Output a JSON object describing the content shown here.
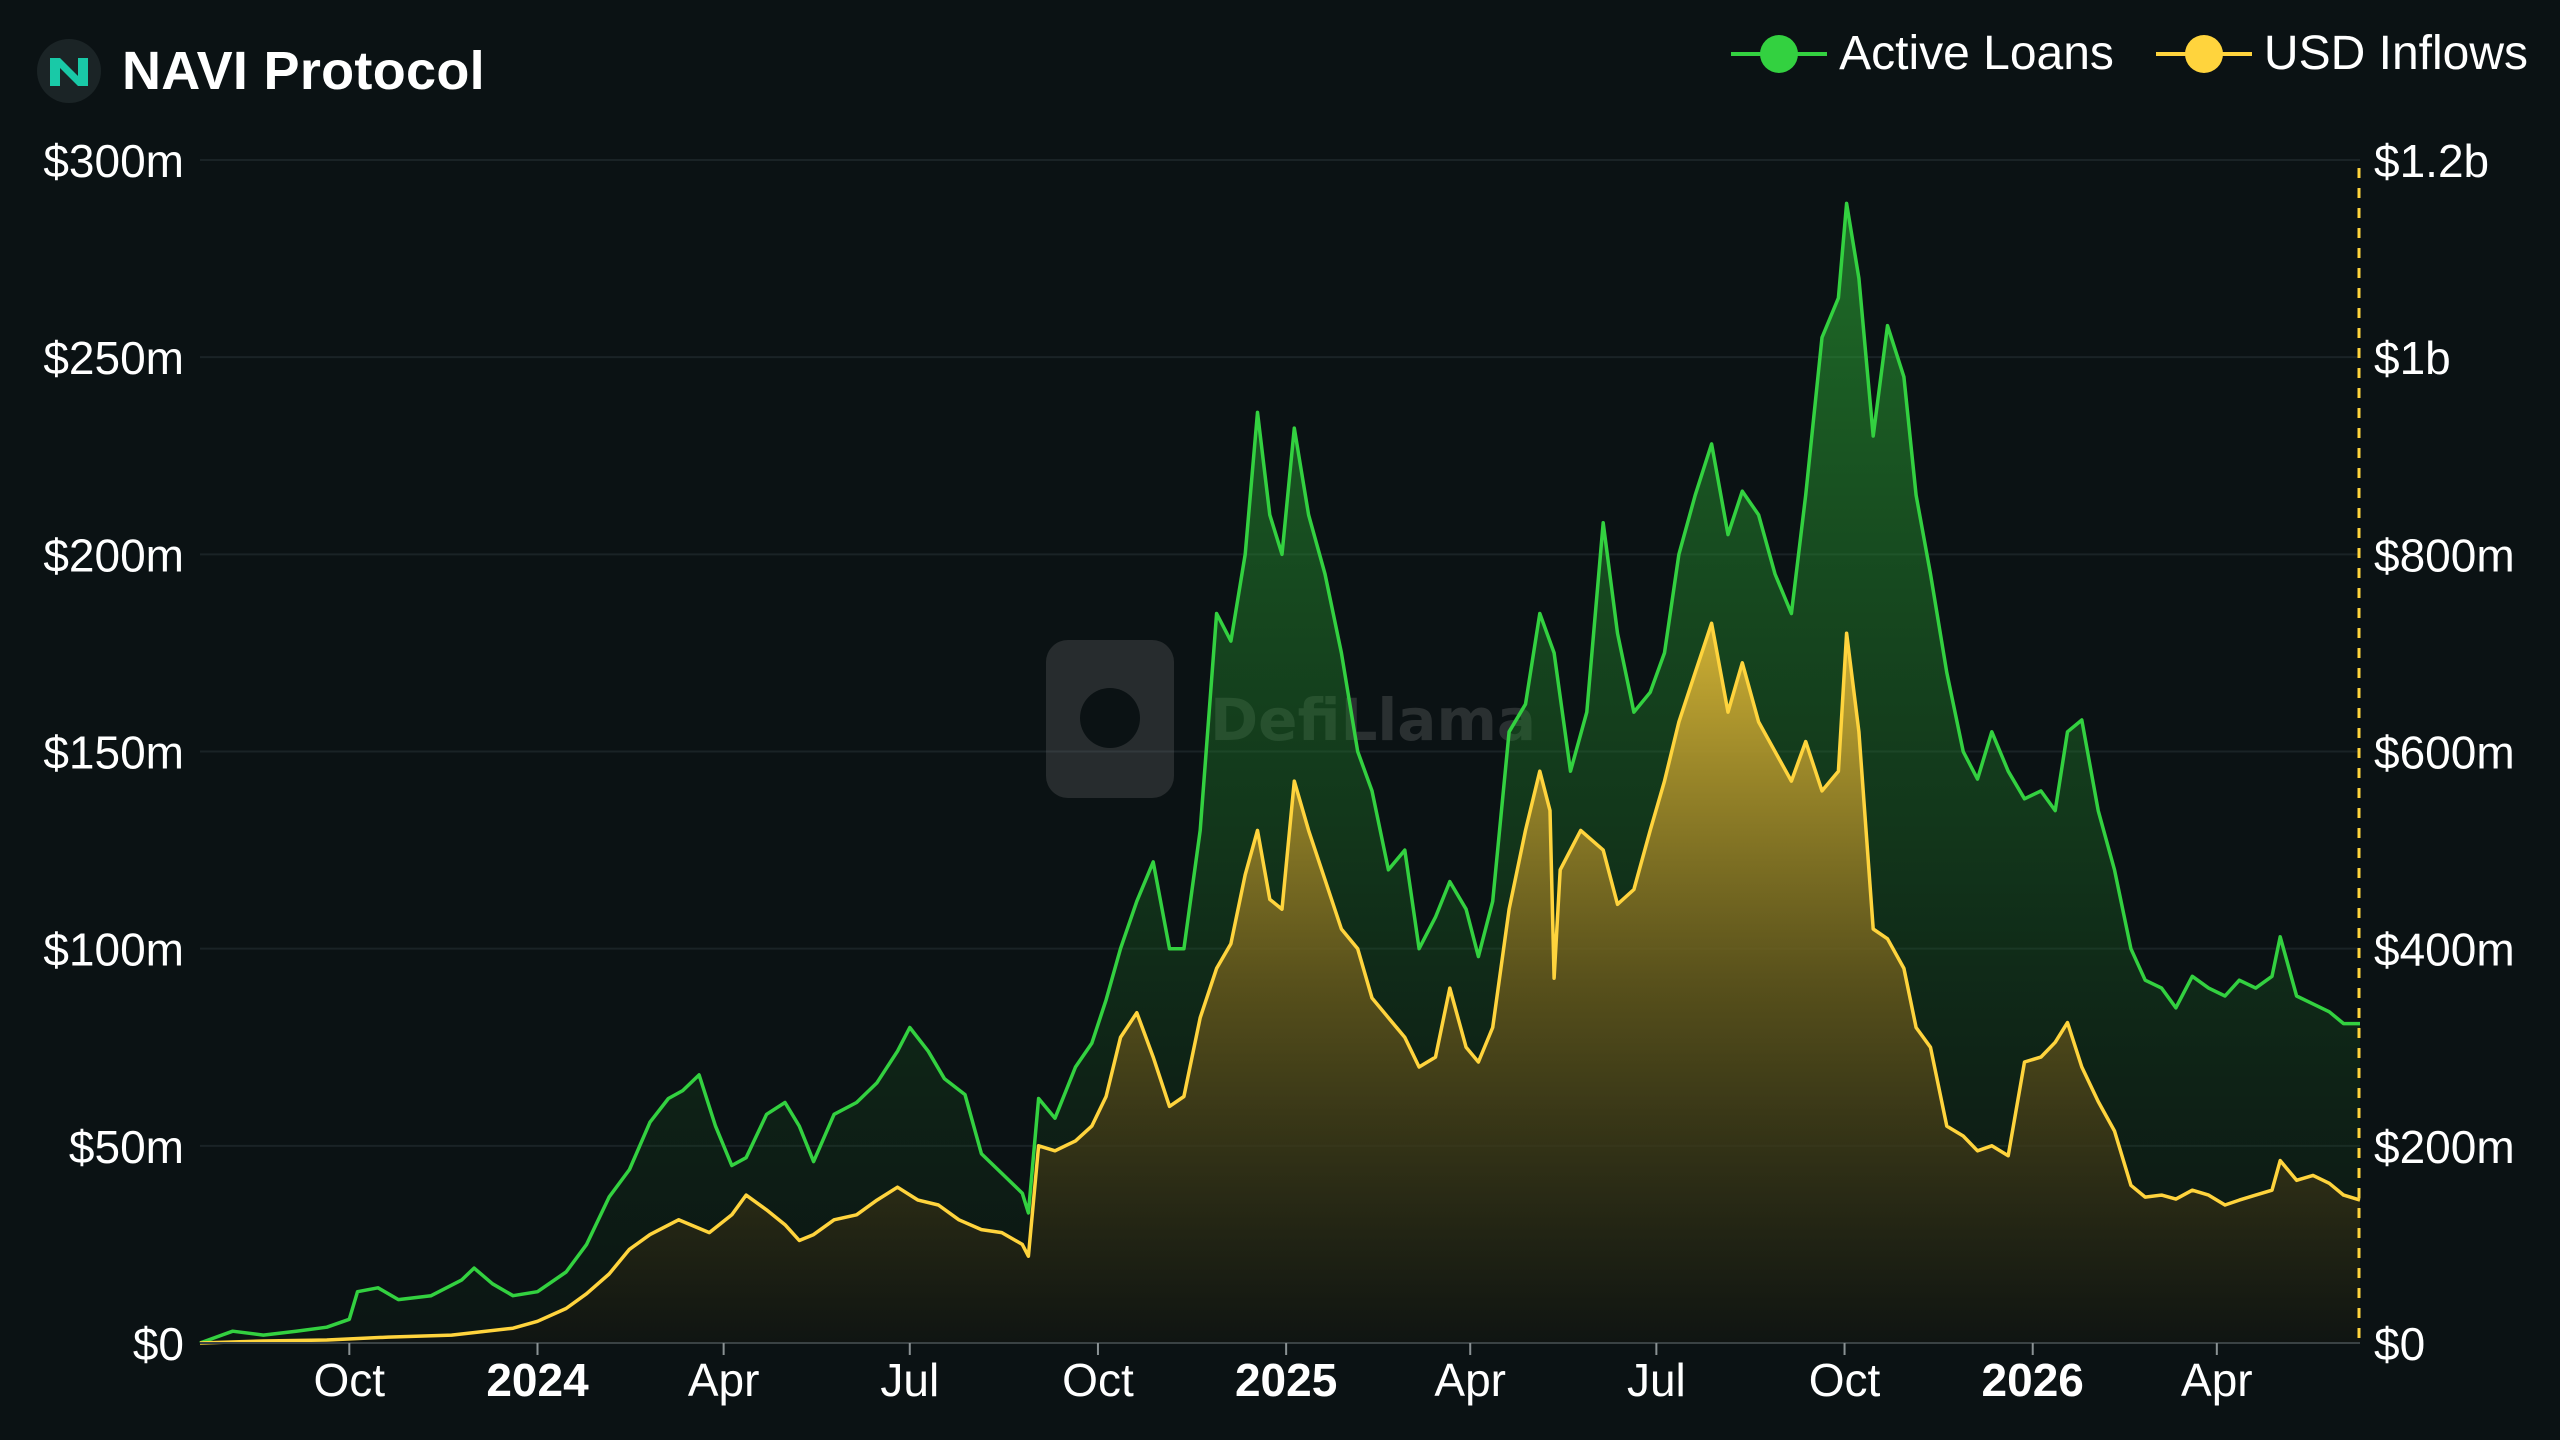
{
  "header": {
    "title": "NAVI Protocol",
    "logo_icon": "navi-logo-icon"
  },
  "legend": {
    "items": [
      {
        "label": "Active Loans",
        "color": "#33d140"
      },
      {
        "label": "USD Inflows",
        "color": "#ffd43d"
      }
    ]
  },
  "watermark": {
    "text": "DefiLlama"
  },
  "chart_data": {
    "type": "area",
    "title": "NAVI Protocol",
    "x_axis": {
      "ticks": [
        {
          "label": "Oct",
          "date": "2023-10-01",
          "bold": false
        },
        {
          "label": "2024",
          "date": "2024-01-01",
          "bold": true
        },
        {
          "label": "Apr",
          "date": "2024-04-01",
          "bold": false
        },
        {
          "label": "Jul",
          "date": "2024-07-01",
          "bold": false
        },
        {
          "label": "Oct",
          "date": "2024-10-01",
          "bold": false
        },
        {
          "label": "2025",
          "date": "2025-01-01",
          "bold": true
        },
        {
          "label": "Apr",
          "date": "2025-04-01",
          "bold": false
        },
        {
          "label": "Jul",
          "date": "2025-07-01",
          "bold": false
        },
        {
          "label": "Oct",
          "date": "2025-10-01",
          "bold": false
        },
        {
          "label": "2026",
          "date": "2026-01-01",
          "bold": true
        },
        {
          "label": "Apr",
          "date": "2026-04-01",
          "bold": false
        }
      ],
      "range": [
        "2023-07-20",
        "2026-06-10"
      ]
    },
    "y_axis_left": {
      "series": "Active Loans",
      "ylim": [
        0,
        300000000
      ],
      "ticks": [
        "$0",
        "$50m",
        "$100m",
        "$150m",
        "$200m",
        "$250m",
        "$300m"
      ]
    },
    "y_axis_right": {
      "series": "USD Inflows",
      "ylim": [
        0,
        1200000000
      ],
      "ticks": [
        "$0",
        "$200m",
        "$400m",
        "$600m",
        "$800m",
        "$1b",
        "$1.2b"
      ]
    },
    "grid": true,
    "legend_position": "top-right",
    "series": [
      {
        "name": "Active Loans",
        "axis": "left",
        "color": "#33d140",
        "unit": "USD millions",
        "points": [
          [
            "2023-07-20",
            0
          ],
          [
            "2023-08-05",
            3
          ],
          [
            "2023-08-20",
            2
          ],
          [
            "2023-09-05",
            3
          ],
          [
            "2023-09-20",
            4
          ],
          [
            "2023-10-01",
            6
          ],
          [
            "2023-10-05",
            13
          ],
          [
            "2023-10-15",
            14
          ],
          [
            "2023-10-25",
            11
          ],
          [
            "2023-11-10",
            12
          ],
          [
            "2023-11-25",
            16
          ],
          [
            "2023-12-01",
            19
          ],
          [
            "2023-12-10",
            15
          ],
          [
            "2023-12-20",
            12
          ],
          [
            "2024-01-01",
            13
          ],
          [
            "2024-01-15",
            18
          ],
          [
            "2024-01-25",
            25
          ],
          [
            "2024-02-05",
            37
          ],
          [
            "2024-02-15",
            44
          ],
          [
            "2024-02-25",
            56
          ],
          [
            "2024-03-05",
            62
          ],
          [
            "2024-03-12",
            64
          ],
          [
            "2024-03-20",
            68
          ],
          [
            "2024-03-28",
            55
          ],
          [
            "2024-04-05",
            45
          ],
          [
            "2024-04-12",
            47
          ],
          [
            "2024-04-22",
            58
          ],
          [
            "2024-05-01",
            61
          ],
          [
            "2024-05-08",
            55
          ],
          [
            "2024-05-15",
            46
          ],
          [
            "2024-05-25",
            58
          ],
          [
            "2024-06-05",
            61
          ],
          [
            "2024-06-15",
            66
          ],
          [
            "2024-06-25",
            74
          ],
          [
            "2024-07-01",
            80
          ],
          [
            "2024-07-10",
            74
          ],
          [
            "2024-07-18",
            67
          ],
          [
            "2024-07-28",
            63
          ],
          [
            "2024-08-05",
            48
          ],
          [
            "2024-08-15",
            43
          ],
          [
            "2024-08-25",
            38
          ],
          [
            "2024-08-28",
            33
          ],
          [
            "2024-09-02",
            62
          ],
          [
            "2024-09-10",
            57
          ],
          [
            "2024-09-20",
            70
          ],
          [
            "2024-09-28",
            76
          ],
          [
            "2024-10-05",
            87
          ],
          [
            "2024-10-12",
            100
          ],
          [
            "2024-10-20",
            112
          ],
          [
            "2024-10-28",
            122
          ],
          [
            "2024-11-05",
            100
          ],
          [
            "2024-11-12",
            100
          ],
          [
            "2024-11-20",
            130
          ],
          [
            "2024-11-28",
            185
          ],
          [
            "2024-12-05",
            178
          ],
          [
            "2024-12-12",
            200
          ],
          [
            "2024-12-18",
            236
          ],
          [
            "2024-12-24",
            210
          ],
          [
            "2024-12-30",
            200
          ],
          [
            "2025-01-05",
            232
          ],
          [
            "2025-01-12",
            210
          ],
          [
            "2025-01-20",
            195
          ],
          [
            "2025-01-28",
            175
          ],
          [
            "2025-02-05",
            150
          ],
          [
            "2025-02-12",
            140
          ],
          [
            "2025-02-20",
            120
          ],
          [
            "2025-02-28",
            125
          ],
          [
            "2025-03-07",
            100
          ],
          [
            "2025-03-15",
            108
          ],
          [
            "2025-03-22",
            117
          ],
          [
            "2025-03-30",
            110
          ],
          [
            "2025-04-05",
            98
          ],
          [
            "2025-04-12",
            112
          ],
          [
            "2025-04-20",
            155
          ],
          [
            "2025-04-28",
            162
          ],
          [
            "2025-05-05",
            185
          ],
          [
            "2025-05-12",
            175
          ],
          [
            "2025-05-20",
            145
          ],
          [
            "2025-05-28",
            160
          ],
          [
            "2025-06-05",
            208
          ],
          [
            "2025-06-12",
            180
          ],
          [
            "2025-06-20",
            160
          ],
          [
            "2025-06-28",
            165
          ],
          [
            "2025-07-05",
            175
          ],
          [
            "2025-07-12",
            200
          ],
          [
            "2025-07-20",
            215
          ],
          [
            "2025-07-28",
            228
          ],
          [
            "2025-08-05",
            205
          ],
          [
            "2025-08-12",
            216
          ],
          [
            "2025-08-20",
            210
          ],
          [
            "2025-08-28",
            195
          ],
          [
            "2025-09-05",
            185
          ],
          [
            "2025-09-12",
            215
          ],
          [
            "2025-09-20",
            255
          ],
          [
            "2025-09-28",
            265
          ],
          [
            "2025-10-02",
            289
          ],
          [
            "2025-10-08",
            270
          ],
          [
            "2025-10-15",
            230
          ],
          [
            "2025-10-22",
            258
          ],
          [
            "2025-10-30",
            245
          ],
          [
            "2025-11-05",
            215
          ],
          [
            "2025-11-12",
            195
          ],
          [
            "2025-11-20",
            170
          ],
          [
            "2025-11-28",
            150
          ],
          [
            "2025-12-05",
            143
          ],
          [
            "2025-12-12",
            155
          ],
          [
            "2025-12-20",
            145
          ],
          [
            "2025-12-28",
            138
          ],
          [
            "2026-01-05",
            140
          ],
          [
            "2026-01-12",
            135
          ],
          [
            "2026-01-18",
            155
          ],
          [
            "2026-01-25",
            158
          ],
          [
            "2026-02-02",
            135
          ],
          [
            "2026-02-10",
            120
          ],
          [
            "2026-02-18",
            100
          ],
          [
            "2026-02-25",
            92
          ],
          [
            "2026-03-05",
            90
          ],
          [
            "2026-03-12",
            85
          ],
          [
            "2026-03-20",
            93
          ],
          [
            "2026-03-28",
            90
          ],
          [
            "2026-04-05",
            88
          ],
          [
            "2026-04-12",
            92
          ],
          [
            "2026-04-20",
            90
          ],
          [
            "2026-04-28",
            93
          ],
          [
            "2026-05-02",
            103
          ],
          [
            "2026-05-10",
            88
          ],
          [
            "2026-05-18",
            86
          ],
          [
            "2026-05-26",
            84
          ],
          [
            "2026-06-02",
            81
          ],
          [
            "2026-06-10",
            81
          ]
        ]
      },
      {
        "name": "USD Inflows",
        "axis": "right",
        "color": "#ffd43d",
        "unit": "USD millions",
        "points": [
          [
            "2023-07-20",
            0
          ],
          [
            "2023-08-20",
            2
          ],
          [
            "2023-09-20",
            3
          ],
          [
            "2023-10-20",
            6
          ],
          [
            "2023-11-20",
            8
          ],
          [
            "2023-12-20",
            15
          ],
          [
            "2024-01-01",
            22
          ],
          [
            "2024-01-15",
            35
          ],
          [
            "2024-01-25",
            50
          ],
          [
            "2024-02-05",
            70
          ],
          [
            "2024-02-15",
            95
          ],
          [
            "2024-02-25",
            110
          ],
          [
            "2024-03-10",
            125
          ],
          [
            "2024-03-25",
            112
          ],
          [
            "2024-04-05",
            130
          ],
          [
            "2024-04-12",
            150
          ],
          [
            "2024-04-22",
            135
          ],
          [
            "2024-05-01",
            120
          ],
          [
            "2024-05-08",
            104
          ],
          [
            "2024-05-15",
            110
          ],
          [
            "2024-05-25",
            125
          ],
          [
            "2024-06-05",
            130
          ],
          [
            "2024-06-15",
            145
          ],
          [
            "2024-06-25",
            158
          ],
          [
            "2024-07-05",
            145
          ],
          [
            "2024-07-15",
            140
          ],
          [
            "2024-07-25",
            125
          ],
          [
            "2024-08-05",
            115
          ],
          [
            "2024-08-15",
            112
          ],
          [
            "2024-08-25",
            100
          ],
          [
            "2024-08-28",
            88
          ],
          [
            "2024-09-02",
            200
          ],
          [
            "2024-09-10",
            195
          ],
          [
            "2024-09-20",
            205
          ],
          [
            "2024-09-28",
            220
          ],
          [
            "2024-10-05",
            250
          ],
          [
            "2024-10-12",
            310
          ],
          [
            "2024-10-20",
            335
          ],
          [
            "2024-10-28",
            290
          ],
          [
            "2024-11-05",
            240
          ],
          [
            "2024-11-12",
            250
          ],
          [
            "2024-11-20",
            330
          ],
          [
            "2024-11-28",
            380
          ],
          [
            "2024-12-05",
            405
          ],
          [
            "2024-12-12",
            475
          ],
          [
            "2024-12-18",
            520
          ],
          [
            "2024-12-24",
            450
          ],
          [
            "2024-12-30",
            440
          ],
          [
            "2025-01-05",
            570
          ],
          [
            "2025-01-12",
            520
          ],
          [
            "2025-01-20",
            470
          ],
          [
            "2025-01-28",
            420
          ],
          [
            "2025-02-05",
            400
          ],
          [
            "2025-02-12",
            350
          ],
          [
            "2025-02-20",
            330
          ],
          [
            "2025-02-28",
            310
          ],
          [
            "2025-03-07",
            280
          ],
          [
            "2025-03-15",
            290
          ],
          [
            "2025-03-22",
            360
          ],
          [
            "2025-03-30",
            300
          ],
          [
            "2025-04-05",
            285
          ],
          [
            "2025-04-12",
            320
          ],
          [
            "2025-04-20",
            440
          ],
          [
            "2025-04-28",
            520
          ],
          [
            "2025-05-05",
            580
          ],
          [
            "2025-05-10",
            540
          ],
          [
            "2025-05-12",
            370
          ],
          [
            "2025-05-15",
            480
          ],
          [
            "2025-05-25",
            520
          ],
          [
            "2025-06-05",
            500
          ],
          [
            "2025-06-12",
            445
          ],
          [
            "2025-06-20",
            460
          ],
          [
            "2025-06-28",
            520
          ],
          [
            "2025-07-05",
            570
          ],
          [
            "2025-07-12",
            630
          ],
          [
            "2025-07-20",
            680
          ],
          [
            "2025-07-28",
            730
          ],
          [
            "2025-08-05",
            640
          ],
          [
            "2025-08-12",
            690
          ],
          [
            "2025-08-20",
            630
          ],
          [
            "2025-08-28",
            600
          ],
          [
            "2025-09-05",
            570
          ],
          [
            "2025-09-12",
            610
          ],
          [
            "2025-09-20",
            560
          ],
          [
            "2025-09-28",
            580
          ],
          [
            "2025-10-02",
            720
          ],
          [
            "2025-10-08",
            620
          ],
          [
            "2025-10-15",
            420
          ],
          [
            "2025-10-22",
            410
          ],
          [
            "2025-10-30",
            380
          ],
          [
            "2025-11-05",
            320
          ],
          [
            "2025-11-12",
            300
          ],
          [
            "2025-11-20",
            220
          ],
          [
            "2025-11-28",
            210
          ],
          [
            "2025-12-05",
            195
          ],
          [
            "2025-12-12",
            200
          ],
          [
            "2025-12-20",
            190
          ],
          [
            "2025-12-28",
            285
          ],
          [
            "2026-01-05",
            290
          ],
          [
            "2026-01-12",
            305
          ],
          [
            "2026-01-18",
            325
          ],
          [
            "2026-01-25",
            280
          ],
          [
            "2026-02-02",
            245
          ],
          [
            "2026-02-10",
            215
          ],
          [
            "2026-02-18",
            160
          ],
          [
            "2026-02-25",
            148
          ],
          [
            "2026-03-05",
            150
          ],
          [
            "2026-03-12",
            146
          ],
          [
            "2026-03-20",
            155
          ],
          [
            "2026-03-28",
            150
          ],
          [
            "2026-04-05",
            140
          ],
          [
            "2026-04-12",
            145
          ],
          [
            "2026-04-20",
            150
          ],
          [
            "2026-04-28",
            155
          ],
          [
            "2026-05-02",
            185
          ],
          [
            "2026-05-10",
            165
          ],
          [
            "2026-05-18",
            170
          ],
          [
            "2026-05-26",
            162
          ],
          [
            "2026-06-02",
            150
          ],
          [
            "2026-06-10",
            145
          ]
        ]
      }
    ]
  }
}
